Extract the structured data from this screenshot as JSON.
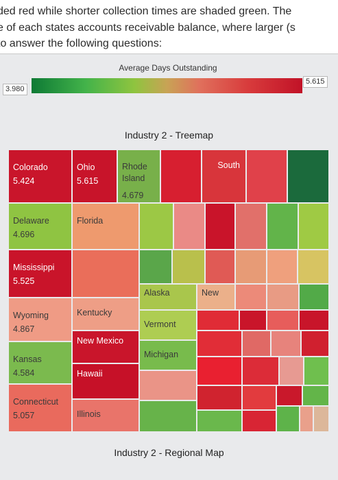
{
  "intro": {
    "lines": [
      "ded red while shorter collection times are shaded green. The",
      "e of each states accounts receivable balance, where larger (s",
      "to answer the following questions:"
    ]
  },
  "legend": {
    "title": "Average Days Outstanding",
    "min_label": "3.980",
    "max_label": "5.615",
    "colors": {
      "low": "#0e7a35",
      "mid": "#c8a355",
      "high": "#c11227"
    }
  },
  "treemap_title": "Industry 2 - Treemap",
  "regional_title": "Industry 2 - Regional Map",
  "chart_data": {
    "type": "treemap",
    "title": "Industry 2 - Treemap",
    "color_metric": "Average Days Outstanding",
    "color_range": [
      3.98,
      5.615
    ],
    "labeled_items": [
      {
        "name": "Colorado",
        "value": "5.424"
      },
      {
        "name": "Ohio",
        "value": "5.615"
      },
      {
        "name": "Rhode Island",
        "value": "4.679"
      },
      {
        "name": "South",
        "value": ""
      },
      {
        "name": "Delaware",
        "value": "4.696"
      },
      {
        "name": "Florida",
        "value": ""
      },
      {
        "name": "Mississippi",
        "value": "5.525"
      },
      {
        "name": "Alaska",
        "value": ""
      },
      {
        "name": "New",
        "value": ""
      },
      {
        "name": "Wyoming",
        "value": "4.867"
      },
      {
        "name": "Kentucky",
        "value": ""
      },
      {
        "name": "Vermont",
        "value": ""
      },
      {
        "name": "New Mexico",
        "value": ""
      },
      {
        "name": "Michigan",
        "value": ""
      },
      {
        "name": "Kansas",
        "value": "4.584"
      },
      {
        "name": "Hawaii",
        "value": ""
      },
      {
        "name": "Connecticut",
        "value": "5.057"
      },
      {
        "name": "Illinois",
        "value": ""
      }
    ]
  }
}
